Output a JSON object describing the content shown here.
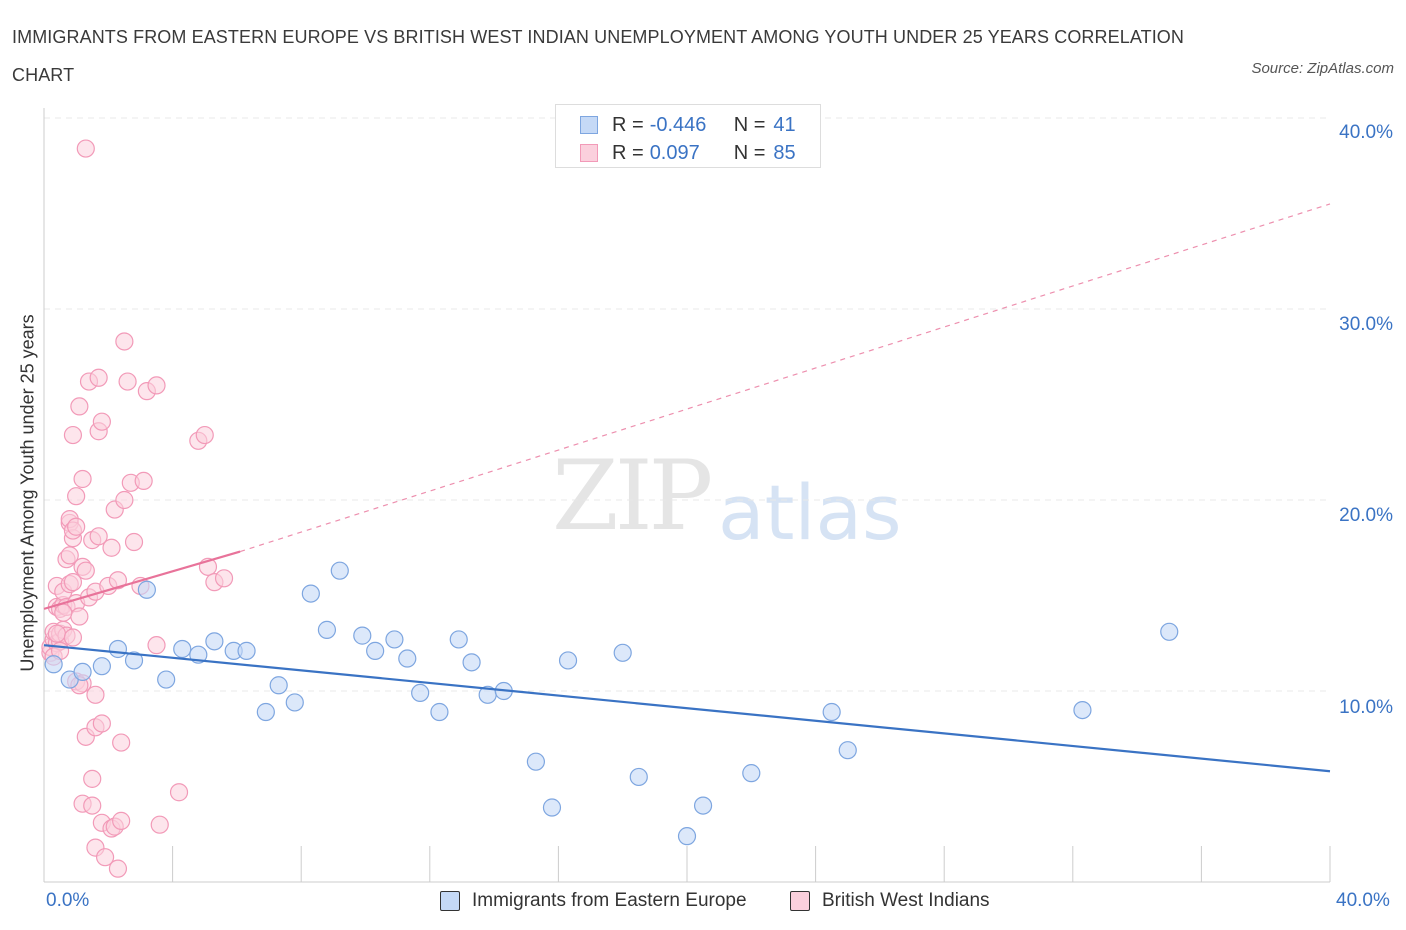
{
  "header": {
    "title": "IMMIGRANTS FROM EASTERN EUROPE VS BRITISH WEST INDIAN UNEMPLOYMENT AMONG YOUTH UNDER 25 YEARS CORRELATION CHART",
    "source": "Source: ZipAtlas.com"
  },
  "watermark": {
    "zip": "ZIP",
    "atlas": "atlas"
  },
  "legend": {
    "rows": [
      {
        "r_label": "R =",
        "r_value": "-0.446",
        "n_label": "N =",
        "n_value": "41"
      },
      {
        "r_label": "R =",
        "r_value": "0.097",
        "n_label": "N =",
        "n_value": "85"
      }
    ]
  },
  "colors": {
    "blue_fill": "#c5d9f6",
    "blue_stroke": "#7ea6e0",
    "blue_line": "#3a73c4",
    "pink_fill": "#fbd0dd",
    "pink_stroke": "#f29ab8",
    "pink_line": "#e8739a",
    "grid": "#e8e8e8",
    "axis_text": "#3a73c4"
  },
  "chart_data": {
    "type": "scatter",
    "title": "IMMIGRANTS FROM EASTERN EUROPE VS BRITISH WEST INDIAN UNEMPLOYMENT AMONG YOUTH UNDER 25 YEARS CORRELATION CHART",
    "xlabel": "",
    "ylabel": "Unemployment Among Youth under 25 years",
    "xlim": [
      0,
      40
    ],
    "ylim": [
      0,
      40
    ],
    "x_tick_labels": [
      "0.0%",
      "40.0%"
    ],
    "y_tick_labels": [
      "10.0%",
      "20.0%",
      "30.0%",
      "40.0%"
    ],
    "y_ticks": [
      10,
      20,
      30,
      40
    ],
    "grid": true,
    "series": [
      {
        "name": "Immigrants from Eastern Europe",
        "r": -0.446,
        "n": 41,
        "trend": {
          "x0": 0,
          "y0": 12.4,
          "x1": 40,
          "y1": 5.8
        },
        "points": [
          [
            0.3,
            11.4
          ],
          [
            0.8,
            10.6
          ],
          [
            1.2,
            11.0
          ],
          [
            1.8,
            11.3
          ],
          [
            2.3,
            12.2
          ],
          [
            2.8,
            11.6
          ],
          [
            3.2,
            15.3
          ],
          [
            3.8,
            10.6
          ],
          [
            4.3,
            12.2
          ],
          [
            4.8,
            11.9
          ],
          [
            5.3,
            12.6
          ],
          [
            5.9,
            12.1
          ],
          [
            6.3,
            12.1
          ],
          [
            6.9,
            8.9
          ],
          [
            7.3,
            10.3
          ],
          [
            7.8,
            9.4
          ],
          [
            8.3,
            15.1
          ],
          [
            8.8,
            13.2
          ],
          [
            9.2,
            16.3
          ],
          [
            9.9,
            12.9
          ],
          [
            10.3,
            12.1
          ],
          [
            10.9,
            12.7
          ],
          [
            11.3,
            11.7
          ],
          [
            11.7,
            9.9
          ],
          [
            12.3,
            8.9
          ],
          [
            12.9,
            12.7
          ],
          [
            13.3,
            11.5
          ],
          [
            13.8,
            9.8
          ],
          [
            14.3,
            10.0
          ],
          [
            15.3,
            6.3
          ],
          [
            15.8,
            3.9
          ],
          [
            16.3,
            11.6
          ],
          [
            18.0,
            12.0
          ],
          [
            18.5,
            5.5
          ],
          [
            20.0,
            2.4
          ],
          [
            20.5,
            4.0
          ],
          [
            22.0,
            5.7
          ],
          [
            24.5,
            8.9
          ],
          [
            25.0,
            6.9
          ],
          [
            32.3,
            9.0
          ],
          [
            35.0,
            13.1
          ]
        ]
      },
      {
        "name": "British West Indians",
        "r": 0.097,
        "n": 85,
        "trend": {
          "x0": 0,
          "y0": 14.3,
          "x1": 6.1,
          "y1": 17.3,
          "dash_x1": 40,
          "dash_y1": 35.5
        },
        "points": [
          [
            0.2,
            12.0
          ],
          [
            0.2,
            12.3
          ],
          [
            0.3,
            12.7
          ],
          [
            0.3,
            13.1
          ],
          [
            0.4,
            12.5
          ],
          [
            0.4,
            14.4
          ],
          [
            0.4,
            15.5
          ],
          [
            0.5,
            12.6
          ],
          [
            0.5,
            13.0
          ],
          [
            0.5,
            14.3
          ],
          [
            0.6,
            14.5
          ],
          [
            0.6,
            15.2
          ],
          [
            0.6,
            13.2
          ],
          [
            0.7,
            14.4
          ],
          [
            0.7,
            12.9
          ],
          [
            0.7,
            16.9
          ],
          [
            0.8,
            17.1
          ],
          [
            0.8,
            15.6
          ],
          [
            0.8,
            18.8
          ],
          [
            0.8,
            19.0
          ],
          [
            0.9,
            18.0
          ],
          [
            0.9,
            15.7
          ],
          [
            0.9,
            23.4
          ],
          [
            0.9,
            18.4
          ],
          [
            1.0,
            20.2
          ],
          [
            1.0,
            14.6
          ],
          [
            1.0,
            10.5
          ],
          [
            1.0,
            18.6
          ],
          [
            1.1,
            24.9
          ],
          [
            1.1,
            13.9
          ],
          [
            1.2,
            21.1
          ],
          [
            1.2,
            16.5
          ],
          [
            1.2,
            10.4
          ],
          [
            1.2,
            4.1
          ],
          [
            1.3,
            7.6
          ],
          [
            1.3,
            38.4
          ],
          [
            1.3,
            16.3
          ],
          [
            1.4,
            26.2
          ],
          [
            1.4,
            14.9
          ],
          [
            1.5,
            17.9
          ],
          [
            1.5,
            5.4
          ],
          [
            1.5,
            4.0
          ],
          [
            1.6,
            15.2
          ],
          [
            1.6,
            9.8
          ],
          [
            1.6,
            8.1
          ],
          [
            1.6,
            1.8
          ],
          [
            1.7,
            23.6
          ],
          [
            1.7,
            26.4
          ],
          [
            1.7,
            18.1
          ],
          [
            1.8,
            24.1
          ],
          [
            1.8,
            3.1
          ],
          [
            1.8,
            8.3
          ],
          [
            1.9,
            1.3
          ],
          [
            2.0,
            15.5
          ],
          [
            2.1,
            2.8
          ],
          [
            2.1,
            17.5
          ],
          [
            2.2,
            19.5
          ],
          [
            2.2,
            2.9
          ],
          [
            2.3,
            15.8
          ],
          [
            2.3,
            0.7
          ],
          [
            2.4,
            3.2
          ],
          [
            2.4,
            7.3
          ],
          [
            2.5,
            20.0
          ],
          [
            2.5,
            28.3
          ],
          [
            2.6,
            26.2
          ],
          [
            2.7,
            20.9
          ],
          [
            2.8,
            17.8
          ],
          [
            3.0,
            15.5
          ],
          [
            3.1,
            21.0
          ],
          [
            3.2,
            25.7
          ],
          [
            3.5,
            26.0
          ],
          [
            3.5,
            12.4
          ],
          [
            3.6,
            3.0
          ],
          [
            4.2,
            4.7
          ],
          [
            4.8,
            23.1
          ],
          [
            5.0,
            23.4
          ],
          [
            5.1,
            16.5
          ],
          [
            5.3,
            15.7
          ],
          [
            5.6,
            15.9
          ],
          [
            0.3,
            11.8
          ],
          [
            0.5,
            12.1
          ],
          [
            1.1,
            10.3
          ],
          [
            0.4,
            13.0
          ],
          [
            0.6,
            14.1
          ],
          [
            0.9,
            12.8
          ]
        ]
      }
    ]
  },
  "bottom_legend": {
    "items": [
      {
        "label": "Immigrants from Eastern Europe"
      },
      {
        "label": "British West Indians"
      }
    ]
  },
  "axes": {
    "x_min_label": "0.0%",
    "x_max_label": "40.0%",
    "y_labels": [
      "40.0%",
      "30.0%",
      "20.0%",
      "10.0%"
    ],
    "y_axis_title": "Unemployment Among Youth under 25 years"
  }
}
